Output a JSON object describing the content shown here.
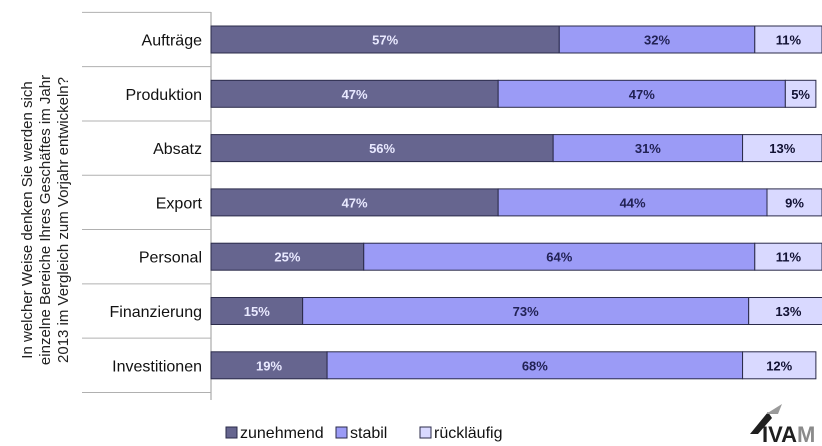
{
  "chart_data": {
    "type": "bar",
    "orientation": "horizontal",
    "stacked": true,
    "ylabel_lines": [
      "In welcher Weise denken Sie werden sich",
      "einzelne Bereiche Ihres Geschäftes im Jahr",
      "2013 im Vergleich zum Vorjahr entwickeln?"
    ],
    "categories": [
      "Aufträge",
      "Produktion",
      "Absatz",
      "Export",
      "Personal",
      "Finanzierung",
      "Investitionen"
    ],
    "series": [
      {
        "name": "zunehmend",
        "values": [
          57,
          47,
          56,
          47,
          25,
          15,
          19
        ],
        "labels": [
          "57%",
          "47%",
          "56%",
          "47%",
          "25%",
          "15%",
          "19%"
        ]
      },
      {
        "name": "stabil",
        "values": [
          32,
          47,
          31,
          44,
          64,
          73,
          68
        ],
        "labels": [
          "32%",
          "47%",
          "31%",
          "44%",
          "64%",
          "73%",
          "68%"
        ]
      },
      {
        "name": "rückläufig",
        "values": [
          11,
          5,
          13,
          9,
          11,
          13,
          12
        ],
        "labels": [
          "11%",
          "5%",
          "13%",
          "9%",
          "11%",
          "13%",
          "12%"
        ]
      }
    ],
    "xlim": [
      0,
      100
    ],
    "grid": false,
    "legend_position": "bottom-center"
  },
  "colors": {
    "zunehmend": "#66658f",
    "stabil": "#9b9bf6",
    "rückläufig": "#d9d9ff",
    "stroke": "#2b2b4a"
  },
  "logo": {
    "text": "IVAM"
  }
}
